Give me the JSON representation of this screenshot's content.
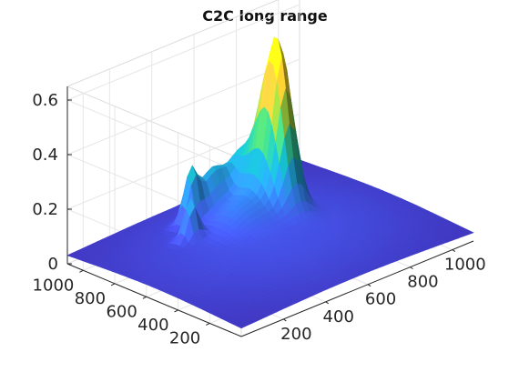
{
  "chart_data": {
    "type": "surface",
    "title": "C2C long range",
    "xlabel": "",
    "ylabel": "",
    "zlabel": "",
    "colormap": "parula",
    "x_range": [
      0,
      1100
    ],
    "y_range": [
      0,
      1100
    ],
    "z_range": [
      0,
      0.65
    ],
    "grid": true,
    "x_ticks": [
      200,
      400,
      600,
      800,
      1000
    ],
    "y_ticks": [
      200,
      400,
      600,
      800,
      1000
    ],
    "z_ticks": [
      0,
      0.2,
      0.4,
      0.6
    ],
    "x_tick_labels": [
      "200",
      "400",
      "600",
      "800",
      "1000"
    ],
    "y_tick_labels": [
      "200",
      "400",
      "600",
      "800",
      "1000"
    ],
    "z_tick_labels": [
      "0",
      "0.2",
      "0.4",
      "0.6"
    ],
    "features": [
      {
        "x": 700,
        "y": 700,
        "z": 0.62
      },
      {
        "x": 420,
        "y": 880,
        "z": 0.22
      },
      {
        "x": 330,
        "y": 760,
        "z": 0.2
      },
      {
        "x": 520,
        "y": 880,
        "z": 0.25
      }
    ]
  },
  "colors": {
    "low": "#3e26a8",
    "mid": "#15b5c0",
    "high": "#f9fb15"
  }
}
